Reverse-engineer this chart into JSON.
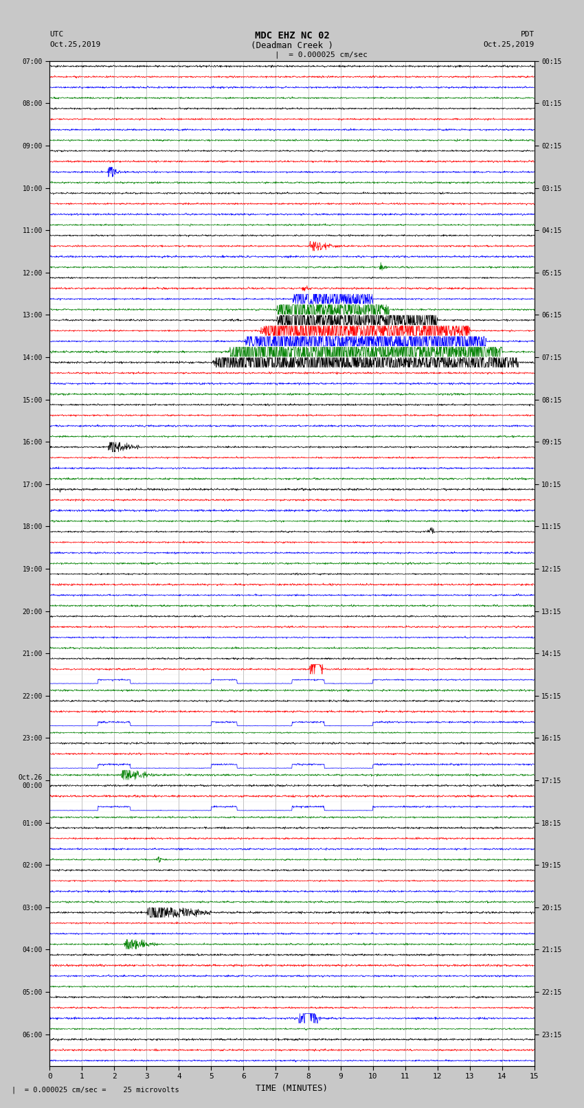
{
  "title_line1": "MDC EHZ NC 02",
  "title_line2": "(Deadman Creek )",
  "scale_label": "= 0.000025 cm/sec",
  "footer_label": "= 0.000025 cm/sec =    25 microvolts",
  "xlabel": "TIME (MINUTES)",
  "left_label_top": "UTC",
  "left_label_date": "Oct.25,2019",
  "right_label_top": "PDT",
  "right_label_date": "Oct.25,2019",
  "bg_color": "#c8c8c8",
  "plot_bg": "#ffffff",
  "trace_colors": [
    "black",
    "red",
    "blue",
    "green"
  ],
  "utc_hour_labels": [
    "07:00",
    "08:00",
    "09:00",
    "10:00",
    "11:00",
    "12:00",
    "13:00",
    "14:00",
    "15:00",
    "16:00",
    "17:00",
    "18:00",
    "19:00",
    "20:00",
    "21:00",
    "22:00",
    "23:00",
    "Oct.26\n00:00",
    "01:00",
    "02:00",
    "03:00",
    "04:00",
    "05:00",
    "06:00"
  ],
  "pdt_hour_labels": [
    "00:15",
    "01:15",
    "02:15",
    "03:15",
    "04:15",
    "05:15",
    "06:15",
    "07:15",
    "08:15",
    "09:15",
    "10:15",
    "11:15",
    "12:15",
    "13:15",
    "14:15",
    "15:15",
    "16:15",
    "17:15",
    "18:15",
    "19:15",
    "20:15",
    "21:15",
    "22:15",
    "23:15"
  ],
  "num_hours": 24,
  "traces_per_hour": 4,
  "xmin": 0,
  "xmax": 15,
  "noise_amp": 0.12,
  "grid_color": "#888888",
  "vgrid_color": "#aaaaaa"
}
